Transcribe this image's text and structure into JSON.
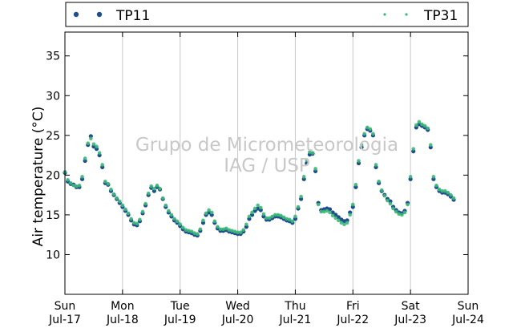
{
  "chart_data": {
    "type": "scatter",
    "ylabel": "Air temperature (°C)",
    "ylim": [
      5,
      38
    ],
    "yticks": [
      10,
      15,
      20,
      25,
      30,
      35
    ],
    "xlim": [
      "2016-07-17 00:00",
      "2016-07-24 00:00"
    ],
    "xticks": [
      {
        "day": "Sun",
        "date": "Jul-17"
      },
      {
        "day": "Mon",
        "date": "Jul-18"
      },
      {
        "day": "Tue",
        "date": "Jul-19"
      },
      {
        "day": "Wed",
        "date": "Jul-20"
      },
      {
        "day": "Thu",
        "date": "Jul-21"
      },
      {
        "day": "Fri",
        "date": "Jul-22"
      },
      {
        "day": "Sat",
        "date": "Jul-23"
      },
      {
        "day": "Sun",
        "date": "Jul-24"
      }
    ],
    "grid": "vertical",
    "legend_position": "top",
    "watermark": [
      "Grupo de Micrometeorologia",
      "IAG / USP"
    ],
    "series": [
      {
        "name": "TP11",
        "color": "#1f4e8c",
        "points": [
          [
            0.0,
            20.3
          ],
          [
            0.05,
            19.2
          ],
          [
            0.1,
            18.9
          ],
          [
            0.15,
            18.8
          ],
          [
            0.2,
            18.5
          ],
          [
            0.25,
            18.5
          ],
          [
            0.3,
            19.5
          ],
          [
            0.35,
            21.8
          ],
          [
            0.4,
            23.8
          ],
          [
            0.45,
            24.9
          ],
          [
            0.5,
            23.6
          ],
          [
            0.55,
            23.3
          ],
          [
            0.6,
            22.5
          ],
          [
            0.65,
            21.0
          ],
          [
            0.7,
            19.0
          ],
          [
            0.75,
            18.8
          ],
          [
            0.8,
            18.0
          ],
          [
            0.85,
            17.5
          ],
          [
            0.9,
            17.0
          ],
          [
            0.95,
            16.5
          ],
          [
            1.0,
            16.0
          ],
          [
            1.05,
            15.5
          ],
          [
            1.1,
            15.0
          ],
          [
            1.15,
            14.3
          ],
          [
            1.2,
            13.8
          ],
          [
            1.25,
            13.7
          ],
          [
            1.3,
            14.2
          ],
          [
            1.35,
            15.2
          ],
          [
            1.4,
            16.2
          ],
          [
            1.45,
            17.5
          ],
          [
            1.5,
            18.4
          ],
          [
            1.55,
            18.0
          ],
          [
            1.6,
            18.5
          ],
          [
            1.65,
            18.2
          ],
          [
            1.7,
            17.0
          ],
          [
            1.75,
            16.0
          ],
          [
            1.8,
            15.3
          ],
          [
            1.85,
            14.8
          ],
          [
            1.9,
            14.3
          ],
          [
            1.95,
            14.0
          ],
          [
            2.0,
            13.6
          ],
          [
            2.05,
            13.2
          ],
          [
            2.1,
            12.9
          ],
          [
            2.15,
            12.8
          ],
          [
            2.2,
            12.7
          ],
          [
            2.25,
            12.5
          ],
          [
            2.3,
            12.4
          ],
          [
            2.35,
            13.0
          ],
          [
            2.4,
            14.0
          ],
          [
            2.45,
            15.0
          ],
          [
            2.5,
            15.3
          ],
          [
            2.55,
            15.0
          ],
          [
            2.6,
            14.0
          ],
          [
            2.65,
            13.3
          ],
          [
            2.7,
            13.0
          ],
          [
            2.75,
            13.0
          ],
          [
            2.8,
            13.1
          ],
          [
            2.85,
            12.9
          ],
          [
            2.9,
            12.8
          ],
          [
            2.95,
            12.7
          ],
          [
            3.0,
            12.6
          ],
          [
            3.05,
            12.6
          ],
          [
            3.1,
            12.9
          ],
          [
            3.15,
            13.5
          ],
          [
            3.2,
            14.5
          ],
          [
            3.25,
            15.0
          ],
          [
            3.3,
            15.5
          ],
          [
            3.35,
            15.8
          ],
          [
            3.4,
            15.6
          ],
          [
            3.45,
            14.8
          ],
          [
            3.5,
            14.4
          ],
          [
            3.55,
            14.4
          ],
          [
            3.6,
            14.6
          ],
          [
            3.65,
            14.8
          ],
          [
            3.7,
            14.8
          ],
          [
            3.75,
            14.7
          ],
          [
            3.8,
            14.5
          ],
          [
            3.85,
            14.3
          ],
          [
            3.9,
            14.2
          ],
          [
            3.95,
            14.0
          ],
          [
            4.0,
            14.5
          ],
          [
            4.05,
            15.8
          ],
          [
            4.1,
            17.0
          ],
          [
            4.15,
            19.5
          ],
          [
            4.2,
            21.5
          ],
          [
            4.25,
            22.6
          ],
          [
            4.3,
            22.7
          ],
          [
            4.35,
            20.5
          ],
          [
            4.4,
            16.5
          ],
          [
            4.45,
            15.6
          ],
          [
            4.5,
            15.7
          ],
          [
            4.55,
            15.8
          ],
          [
            4.6,
            15.7
          ],
          [
            4.65,
            15.3
          ],
          [
            4.7,
            15.0
          ],
          [
            4.75,
            14.7
          ],
          [
            4.8,
            14.4
          ],
          [
            4.85,
            14.2
          ],
          [
            4.9,
            14.3
          ],
          [
            4.95,
            15.3
          ],
          [
            5.0,
            16.0
          ],
          [
            5.05,
            18.5
          ],
          [
            5.1,
            21.5
          ],
          [
            5.15,
            23.5
          ],
          [
            5.2,
            25.0
          ],
          [
            5.25,
            25.8
          ],
          [
            5.3,
            25.6
          ],
          [
            5.35,
            25.0
          ],
          [
            5.4,
            21.0
          ],
          [
            5.45,
            19.0
          ],
          [
            5.5,
            18.0
          ],
          [
            5.55,
            17.5
          ],
          [
            5.6,
            17.0
          ],
          [
            5.65,
            16.7
          ],
          [
            5.7,
            16.0
          ],
          [
            5.75,
            15.6
          ],
          [
            5.8,
            15.3
          ],
          [
            5.85,
            15.2
          ],
          [
            5.9,
            15.5
          ],
          [
            5.95,
            16.5
          ],
          [
            6.0,
            19.5
          ],
          [
            6.05,
            23.0
          ],
          [
            6.1,
            26.0
          ],
          [
            6.15,
            26.4
          ],
          [
            6.2,
            26.2
          ],
          [
            6.25,
            26.0
          ],
          [
            6.3,
            25.7
          ],
          [
            6.35,
            23.5
          ],
          [
            6.4,
            19.5
          ],
          [
            6.45,
            18.5
          ],
          [
            6.5,
            18.0
          ],
          [
            6.55,
            17.8
          ],
          [
            6.6,
            17.8
          ],
          [
            6.65,
            17.6
          ],
          [
            6.7,
            17.3
          ],
          [
            6.75,
            16.9
          ]
        ]
      },
      {
        "name": "TP31",
        "color": "#3cb878",
        "points": [
          [
            0.0,
            20.4
          ],
          [
            0.05,
            19.4
          ],
          [
            0.1,
            19.0
          ],
          [
            0.15,
            18.7
          ],
          [
            0.2,
            18.6
          ],
          [
            0.25,
            18.7
          ],
          [
            0.3,
            19.8
          ],
          [
            0.35,
            22.1
          ],
          [
            0.4,
            24.0
          ],
          [
            0.45,
            24.6
          ],
          [
            0.5,
            23.9
          ],
          [
            0.55,
            23.6
          ],
          [
            0.6,
            22.8
          ],
          [
            0.65,
            21.3
          ],
          [
            0.7,
            19.2
          ],
          [
            0.75,
            18.9
          ],
          [
            0.8,
            18.2
          ],
          [
            0.85,
            17.6
          ],
          [
            0.9,
            17.1
          ],
          [
            0.95,
            16.7
          ],
          [
            1.0,
            16.2
          ],
          [
            1.05,
            15.7
          ],
          [
            1.1,
            15.2
          ],
          [
            1.15,
            14.5
          ],
          [
            1.2,
            14.0
          ],
          [
            1.25,
            13.9
          ],
          [
            1.3,
            14.4
          ],
          [
            1.35,
            15.4
          ],
          [
            1.4,
            16.4
          ],
          [
            1.45,
            17.7
          ],
          [
            1.5,
            18.6
          ],
          [
            1.55,
            18.3
          ],
          [
            1.6,
            18.7
          ],
          [
            1.65,
            18.3
          ],
          [
            1.7,
            17.1
          ],
          [
            1.75,
            16.2
          ],
          [
            1.8,
            15.5
          ],
          [
            1.85,
            15.0
          ],
          [
            1.9,
            14.5
          ],
          [
            1.95,
            14.2
          ],
          [
            2.0,
            13.8
          ],
          [
            2.05,
            13.4
          ],
          [
            2.1,
            13.1
          ],
          [
            2.15,
            13.0
          ],
          [
            2.2,
            12.9
          ],
          [
            2.25,
            12.7
          ],
          [
            2.3,
            12.6
          ],
          [
            2.35,
            13.2
          ],
          [
            2.4,
            14.3
          ],
          [
            2.45,
            15.2
          ],
          [
            2.5,
            15.6
          ],
          [
            2.55,
            15.3
          ],
          [
            2.6,
            14.2
          ],
          [
            2.65,
            13.5
          ],
          [
            2.7,
            13.2
          ],
          [
            2.75,
            13.2
          ],
          [
            2.8,
            13.3
          ],
          [
            2.85,
            13.1
          ],
          [
            2.9,
            13.0
          ],
          [
            2.95,
            12.9
          ],
          [
            3.0,
            12.8
          ],
          [
            3.05,
            12.8
          ],
          [
            3.1,
            13.1
          ],
          [
            3.15,
            13.8
          ],
          [
            3.2,
            14.8
          ],
          [
            3.25,
            15.3
          ],
          [
            3.3,
            15.8
          ],
          [
            3.35,
            16.2
          ],
          [
            3.4,
            15.9
          ],
          [
            3.45,
            15.1
          ],
          [
            3.5,
            14.6
          ],
          [
            3.55,
            14.6
          ],
          [
            3.6,
            14.8
          ],
          [
            3.65,
            15.0
          ],
          [
            3.7,
            15.0
          ],
          [
            3.75,
            14.9
          ],
          [
            3.8,
            14.7
          ],
          [
            3.85,
            14.5
          ],
          [
            3.9,
            14.4
          ],
          [
            3.95,
            14.2
          ],
          [
            4.0,
            14.8
          ],
          [
            4.05,
            16.0
          ],
          [
            4.1,
            17.3
          ],
          [
            4.15,
            19.8
          ],
          [
            4.2,
            21.9
          ],
          [
            4.25,
            22.9
          ],
          [
            4.3,
            22.8
          ],
          [
            4.35,
            20.8
          ],
          [
            4.4,
            16.3
          ],
          [
            4.45,
            15.4
          ],
          [
            4.5,
            15.4
          ],
          [
            4.55,
            15.5
          ],
          [
            4.6,
            15.3
          ],
          [
            4.65,
            14.9
          ],
          [
            4.7,
            14.6
          ],
          [
            4.75,
            14.3
          ],
          [
            4.8,
            14.0
          ],
          [
            4.85,
            13.8
          ],
          [
            4.9,
            14.0
          ],
          [
            4.95,
            15.0
          ],
          [
            5.0,
            16.3
          ],
          [
            5.05,
            18.8
          ],
          [
            5.1,
            21.8
          ],
          [
            5.15,
            23.8
          ],
          [
            5.2,
            25.2
          ],
          [
            5.25,
            26.0
          ],
          [
            5.3,
            25.8
          ],
          [
            5.35,
            25.2
          ],
          [
            5.4,
            21.3
          ],
          [
            5.45,
            19.2
          ],
          [
            5.5,
            18.1
          ],
          [
            5.55,
            17.4
          ],
          [
            5.6,
            16.8
          ],
          [
            5.65,
            16.4
          ],
          [
            5.7,
            15.8
          ],
          [
            5.75,
            15.4
          ],
          [
            5.8,
            15.1
          ],
          [
            5.85,
            15.0
          ],
          [
            5.9,
            15.3
          ],
          [
            5.95,
            16.3
          ],
          [
            6.0,
            19.8
          ],
          [
            6.05,
            23.3
          ],
          [
            6.1,
            26.3
          ],
          [
            6.15,
            26.7
          ],
          [
            6.2,
            26.4
          ],
          [
            6.25,
            26.2
          ],
          [
            6.3,
            25.9
          ],
          [
            6.35,
            23.8
          ],
          [
            6.4,
            19.8
          ],
          [
            6.45,
            18.7
          ],
          [
            6.5,
            18.2
          ],
          [
            6.55,
            18.0
          ],
          [
            6.6,
            18.0
          ],
          [
            6.65,
            17.8
          ],
          [
            6.7,
            17.5
          ],
          [
            6.75,
            17.1
          ]
        ]
      }
    ]
  }
}
